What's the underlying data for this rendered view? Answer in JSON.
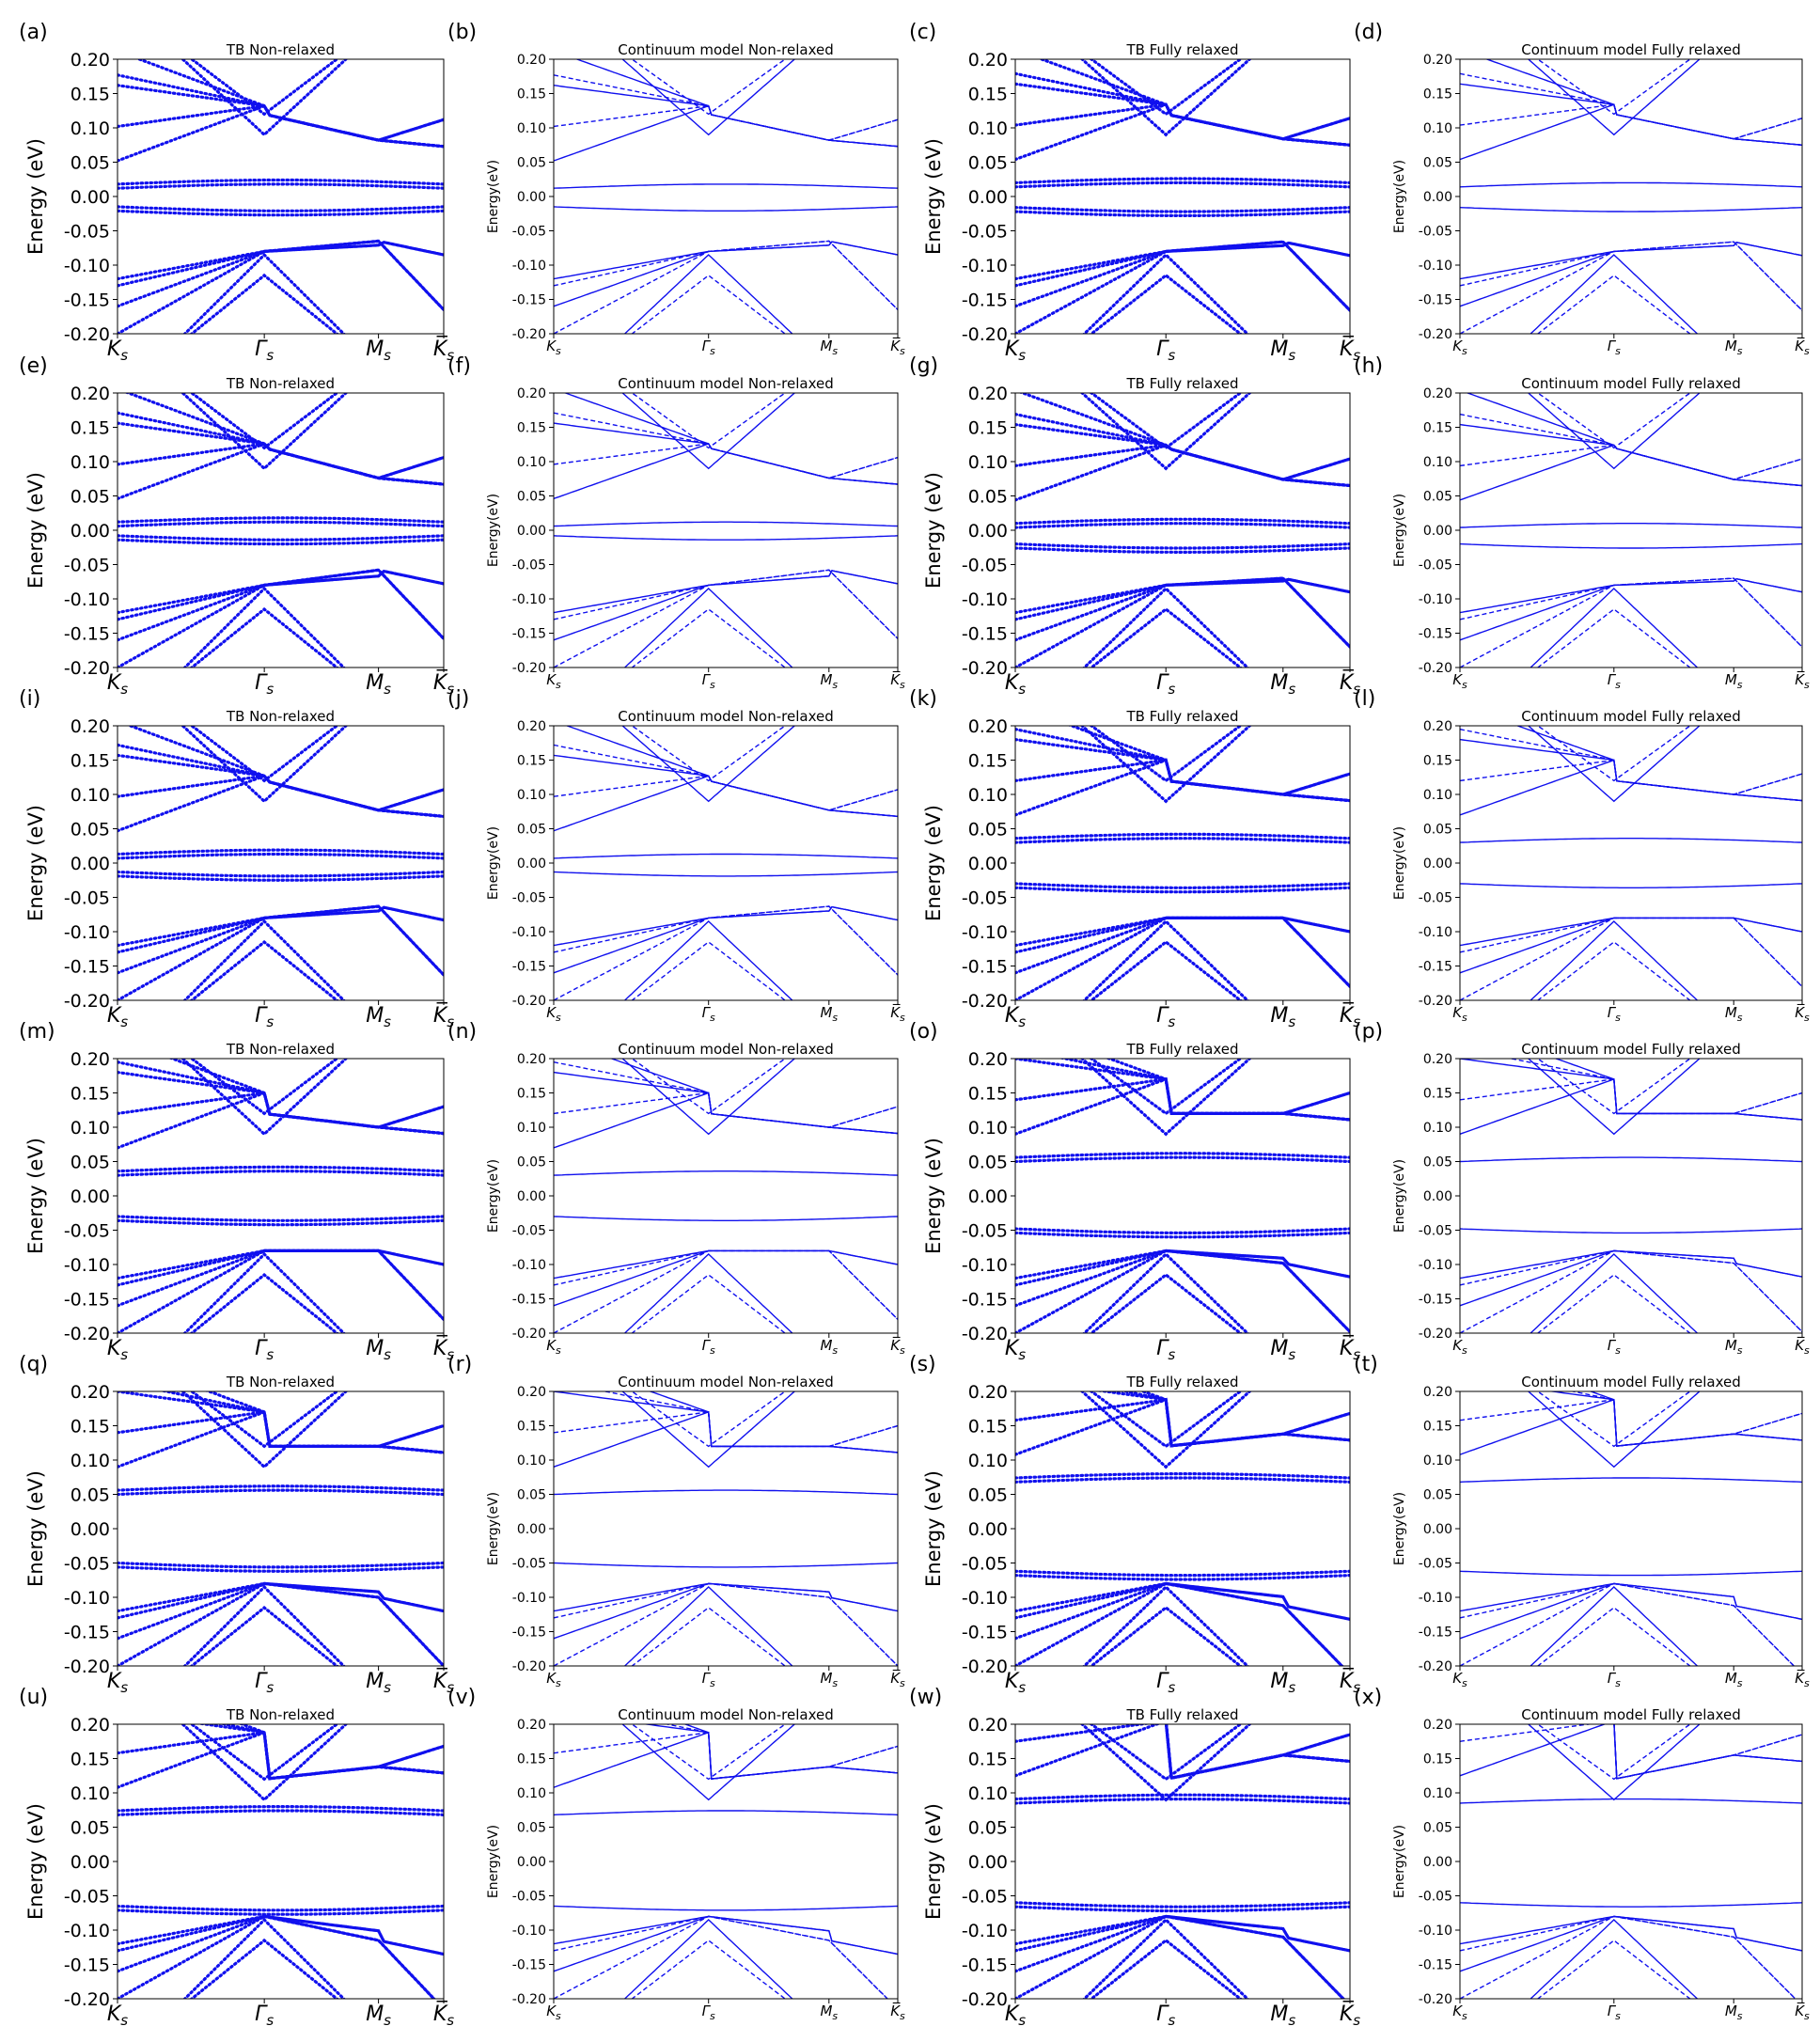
{
  "figure": {
    "rows": 6,
    "cols": 4,
    "panel_letters": [
      "(a)",
      "(b)",
      "(c)",
      "(d)",
      "(e)",
      "(f)",
      "(g)",
      "(h)",
      "(i)",
      "(j)",
      "(k)",
      "(l)",
      "(m)",
      "(n)",
      "(o)",
      "(p)",
      "(q)",
      "(r)",
      "(s)",
      "(t)",
      "(u)",
      "(v)",
      "(w)",
      "(x)"
    ],
    "line_color": "#1010ee"
  },
  "chart_data": {
    "type": "line",
    "ylim": [
      -0.2,
      0.2
    ],
    "yticks": [
      "0.20",
      "0.15",
      "0.10",
      "0.05",
      "0.00",
      "-0.05",
      "-0.10",
      "-0.15",
      "-0.20"
    ],
    "kpoints": [
      "K",
      "Γ",
      "M",
      "K̅"
    ],
    "kpoint_subscript": "s",
    "kpoint_positions": [
      0,
      0.45,
      0.8,
      1.0
    ],
    "column_titles": [
      "TB Non-relaxed",
      "Continuum model Non-relaxed",
      "TB Fully relaxed",
      "Continuum model Fully relaxed"
    ],
    "column_ylabels": [
      "Energy (eV)",
      "Energy(eV)",
      "Energy (eV)",
      "Energy(eV)"
    ],
    "column_styles": [
      "dotted",
      "solid+dashed",
      "dotted",
      "solid+dashed"
    ],
    "grid": false,
    "rows": [
      {
        "row": 1,
        "nonrelaxed_conduction_edge": 0.012,
        "nonrelaxed_valence_edge": -0.015,
        "relaxed_conduction_edge": 0.014,
        "relaxed_valence_edge": -0.016
      },
      {
        "row": 2,
        "nonrelaxed_conduction_edge": 0.006,
        "nonrelaxed_valence_edge": -0.008,
        "relaxed_conduction_edge": 0.004,
        "relaxed_valence_edge": -0.02
      },
      {
        "row": 3,
        "nonrelaxed_conduction_edge": 0.007,
        "nonrelaxed_valence_edge": -0.013,
        "relaxed_conduction_edge": 0.03,
        "relaxed_valence_edge": -0.03
      },
      {
        "row": 4,
        "nonrelaxed_conduction_edge": 0.03,
        "nonrelaxed_valence_edge": -0.03,
        "relaxed_conduction_edge": 0.05,
        "relaxed_valence_edge": -0.048
      },
      {
        "row": 5,
        "nonrelaxed_conduction_edge": 0.05,
        "nonrelaxed_valence_edge": -0.05,
        "relaxed_conduction_edge": 0.068,
        "relaxed_valence_edge": -0.062
      },
      {
        "row": 6,
        "nonrelaxed_conduction_edge": 0.068,
        "nonrelaxed_valence_edge": -0.065,
        "relaxed_conduction_edge": 0.085,
        "relaxed_valence_edge": -0.06
      }
    ]
  }
}
